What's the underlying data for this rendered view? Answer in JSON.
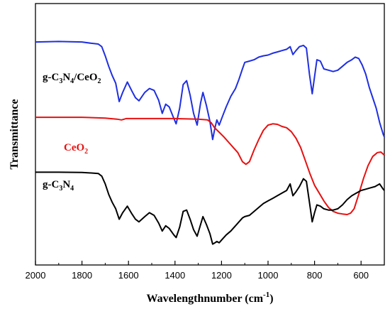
{
  "chart_data": {
    "type": "line",
    "title": "",
    "xlabel": "Wavelengthnumber (cm",
    "xlabel_sup": "-1",
    "xlabel_end": ")",
    "ylabel": "Transmittance",
    "xlim": [
      2000,
      500
    ],
    "ylim": [
      0,
      100
    ],
    "x_reversed": true,
    "x_ticks": [
      2000,
      1800,
      1600,
      1400,
      1200,
      1000,
      800,
      600
    ],
    "y_ticks_shown": false,
    "grid": false,
    "legend": "inline labels on the left",
    "series": [
      {
        "name": "g-C3N4/CeO2",
        "label_parts": [
          [
            "g-C",
            ""
          ],
          [
            "3",
            "sub"
          ],
          [
            "N",
            ""
          ],
          [
            "4",
            "sub"
          ],
          [
            "/CeO",
            ""
          ],
          [
            "2",
            "sub"
          ]
        ],
        "color": "#1f2fe0",
        "points": [
          [
            2000,
            85.3
          ],
          [
            1900,
            85.5
          ],
          [
            1800,
            85.3
          ],
          [
            1760,
            84.8
          ],
          [
            1730,
            84.5
          ],
          [
            1715,
            83.5
          ],
          [
            1700,
            80.0
          ],
          [
            1685,
            76.0
          ],
          [
            1670,
            72.5
          ],
          [
            1655,
            69.5
          ],
          [
            1640,
            62.5
          ],
          [
            1625,
            66.0
          ],
          [
            1605,
            70.0
          ],
          [
            1585,
            66.5
          ],
          [
            1570,
            64.0
          ],
          [
            1555,
            62.8
          ],
          [
            1530,
            66.0
          ],
          [
            1510,
            67.5
          ],
          [
            1490,
            66.8
          ],
          [
            1470,
            63.0
          ],
          [
            1455,
            58.0
          ],
          [
            1440,
            61.5
          ],
          [
            1425,
            60.5
          ],
          [
            1405,
            56.0
          ],
          [
            1395,
            54.0
          ],
          [
            1380,
            60.0
          ],
          [
            1365,
            69.0
          ],
          [
            1350,
            70.5
          ],
          [
            1335,
            65.0
          ],
          [
            1320,
            58.0
          ],
          [
            1305,
            53.5
          ],
          [
            1290,
            62.0
          ],
          [
            1280,
            66.0
          ],
          [
            1265,
            61.0
          ],
          [
            1250,
            55.0
          ],
          [
            1238,
            48.0
          ],
          [
            1228,
            52.5
          ],
          [
            1220,
            55.5
          ],
          [
            1210,
            53.5
          ],
          [
            1195,
            57.0
          ],
          [
            1180,
            60.5
          ],
          [
            1160,
            64.5
          ],
          [
            1140,
            67.5
          ],
          [
            1125,
            71.0
          ],
          [
            1110,
            75.0
          ],
          [
            1100,
            77.5
          ],
          [
            1080,
            78.0
          ],
          [
            1060,
            78.5
          ],
          [
            1040,
            79.5
          ],
          [
            1020,
            80.0
          ],
          [
            1000,
            80.3
          ],
          [
            980,
            81.0
          ],
          [
            960,
            81.5
          ],
          [
            940,
            82.0
          ],
          [
            920,
            82.5
          ],
          [
            905,
            83.5
          ],
          [
            893,
            80.5
          ],
          [
            880,
            82.0
          ],
          [
            865,
            83.5
          ],
          [
            848,
            84.0
          ],
          [
            835,
            83.0
          ],
          [
            822,
            73.0
          ],
          [
            810,
            65.5
          ],
          [
            800,
            72.0
          ],
          [
            790,
            78.5
          ],
          [
            775,
            78.0
          ],
          [
            760,
            75.0
          ],
          [
            740,
            74.5
          ],
          [
            720,
            74.0
          ],
          [
            700,
            74.5
          ],
          [
            680,
            76.0
          ],
          [
            660,
            77.5
          ],
          [
            640,
            78.5
          ],
          [
            625,
            79.5
          ],
          [
            610,
            79.0
          ],
          [
            595,
            76.5
          ],
          [
            580,
            73.0
          ],
          [
            565,
            68.0
          ],
          [
            550,
            64.0
          ],
          [
            535,
            60.0
          ],
          [
            520,
            54.5
          ],
          [
            505,
            50.0
          ],
          [
            500,
            49.0
          ]
        ]
      },
      {
        "name": "CeO2",
        "label_parts": [
          [
            "CeO",
            ""
          ],
          [
            "2",
            "sub"
          ]
        ],
        "color": "#e81010",
        "points": [
          [
            2000,
            56.5
          ],
          [
            1800,
            56.5
          ],
          [
            1700,
            56.2
          ],
          [
            1650,
            55.8
          ],
          [
            1630,
            55.5
          ],
          [
            1610,
            56.0
          ],
          [
            1500,
            56.0
          ],
          [
            1400,
            56.0
          ],
          [
            1300,
            55.8
          ],
          [
            1260,
            55.5
          ],
          [
            1245,
            54.5
          ],
          [
            1230,
            52.5
          ],
          [
            1210,
            50.8
          ],
          [
            1190,
            49.0
          ],
          [
            1170,
            47.0
          ],
          [
            1150,
            45.0
          ],
          [
            1130,
            43.0
          ],
          [
            1110,
            39.5
          ],
          [
            1095,
            38.5
          ],
          [
            1080,
            39.5
          ],
          [
            1060,
            44.0
          ],
          [
            1040,
            48.0
          ],
          [
            1020,
            51.5
          ],
          [
            1000,
            53.5
          ],
          [
            980,
            54.0
          ],
          [
            960,
            53.8
          ],
          [
            940,
            53.0
          ],
          [
            920,
            52.5
          ],
          [
            900,
            51.0
          ],
          [
            880,
            48.5
          ],
          [
            860,
            45.0
          ],
          [
            840,
            40.0
          ],
          [
            820,
            35.0
          ],
          [
            800,
            30.5
          ],
          [
            780,
            27.5
          ],
          [
            760,
            24.5
          ],
          [
            740,
            22.0
          ],
          [
            720,
            20.5
          ],
          [
            700,
            19.8
          ],
          [
            680,
            19.5
          ],
          [
            660,
            19.3
          ],
          [
            645,
            19.8
          ],
          [
            630,
            21.5
          ],
          [
            610,
            27.0
          ],
          [
            590,
            33.0
          ],
          [
            570,
            38.0
          ],
          [
            550,
            41.5
          ],
          [
            530,
            43.0
          ],
          [
            515,
            43.2
          ],
          [
            500,
            42.0
          ]
        ]
      },
      {
        "name": "g-C3N4",
        "label_parts": [
          [
            "g-C",
            ""
          ],
          [
            "3",
            "sub"
          ],
          [
            "N",
            ""
          ],
          [
            "4",
            "sub"
          ]
        ],
        "color": "#000000",
        "points": [
          [
            2000,
            35.5
          ],
          [
            1900,
            35.5
          ],
          [
            1800,
            35.4
          ],
          [
            1760,
            35.2
          ],
          [
            1730,
            35.0
          ],
          [
            1715,
            34.0
          ],
          [
            1700,
            31.0
          ],
          [
            1685,
            27.0
          ],
          [
            1670,
            24.0
          ],
          [
            1655,
            21.5
          ],
          [
            1640,
            17.5
          ],
          [
            1625,
            20.0
          ],
          [
            1605,
            22.5
          ],
          [
            1585,
            19.5
          ],
          [
            1570,
            17.5
          ],
          [
            1555,
            16.5
          ],
          [
            1530,
            18.5
          ],
          [
            1510,
            20.0
          ],
          [
            1490,
            19.0
          ],
          [
            1470,
            16.0
          ],
          [
            1455,
            13.0
          ],
          [
            1440,
            15.0
          ],
          [
            1425,
            14.0
          ],
          [
            1405,
            11.5
          ],
          [
            1395,
            10.5
          ],
          [
            1380,
            14.5
          ],
          [
            1365,
            20.5
          ],
          [
            1350,
            21.0
          ],
          [
            1335,
            17.5
          ],
          [
            1320,
            13.5
          ],
          [
            1305,
            11.0
          ],
          [
            1290,
            15.5
          ],
          [
            1280,
            18.5
          ],
          [
            1265,
            15.5
          ],
          [
            1250,
            12.0
          ],
          [
            1238,
            8.0
          ],
          [
            1228,
            8.5
          ],
          [
            1220,
            9.0
          ],
          [
            1210,
            8.5
          ],
          [
            1195,
            10.0
          ],
          [
            1180,
            11.5
          ],
          [
            1160,
            13.0
          ],
          [
            1140,
            15.0
          ],
          [
            1125,
            16.5
          ],
          [
            1110,
            18.0
          ],
          [
            1100,
            18.5
          ],
          [
            1080,
            19.0
          ],
          [
            1060,
            20.5
          ],
          [
            1040,
            22.0
          ],
          [
            1020,
            23.5
          ],
          [
            1000,
            24.5
          ],
          [
            980,
            25.5
          ],
          [
            960,
            26.5
          ],
          [
            940,
            27.5
          ],
          [
            920,
            28.5
          ],
          [
            905,
            31.0
          ],
          [
            893,
            26.5
          ],
          [
            880,
            28.0
          ],
          [
            865,
            30.0
          ],
          [
            848,
            33.0
          ],
          [
            835,
            32.0
          ],
          [
            822,
            24.0
          ],
          [
            810,
            16.5
          ],
          [
            800,
            20.0
          ],
          [
            790,
            23.0
          ],
          [
            775,
            22.5
          ],
          [
            760,
            21.5
          ],
          [
            740,
            21.0
          ],
          [
            720,
            21.0
          ],
          [
            700,
            21.5
          ],
          [
            680,
            23.0
          ],
          [
            660,
            25.0
          ],
          [
            640,
            26.5
          ],
          [
            620,
            27.5
          ],
          [
            600,
            28.5
          ],
          [
            580,
            29.0
          ],
          [
            560,
            29.5
          ],
          [
            540,
            30.0
          ],
          [
            520,
            31.0
          ],
          [
            505,
            29.0
          ],
          [
            500,
            28.5
          ]
        ]
      }
    ]
  }
}
